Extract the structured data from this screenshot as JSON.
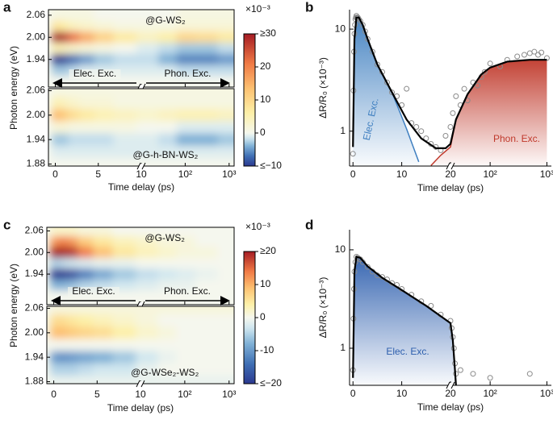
{
  "chart_data": [
    {
      "panel": "a",
      "type": "heatmap",
      "xlabel": "Time delay (ps)",
      "ylabel": "Photon energy (eV)",
      "xlim": [
        -0.8,
        1300
      ],
      "xbreak": 10,
      "xticks": [
        0,
        5,
        10,
        {
          "value": 100,
          "label": "10²"
        },
        {
          "value": 1000,
          "label": "10³"
        }
      ],
      "colorbar": {
        "unit": "×10⁻³",
        "clim": [
          -10,
          30
        ],
        "ticks": [
          {
            "value": -10,
            "label": "≤−10"
          },
          0,
          10,
          20,
          {
            "value": 30,
            "label": "≥30"
          }
        ]
      },
      "annotations": [
        "Elec. Exc.",
        "Phon. Exc."
      ],
      "x": [
        0.3,
        1,
        2,
        3.5,
        5.5,
        8,
        15,
        40,
        100,
        300,
        1000
      ],
      "y": [
        2.06,
        2.03,
        2.0,
        1.97,
        1.94,
        1.91,
        1.88
      ],
      "subplots": [
        {
          "label": "@G-WS₂",
          "ylim": [
            1.865,
            2.075
          ],
          "yticks": [
            2.06,
            {
              "value": 2.0,
              "label": "2.00"
            },
            1.94
          ],
          "z": [
            [
              1,
              1,
              1,
              1,
              0,
              0,
              0,
              0,
              1,
              1,
              1
            ],
            [
              8,
              6,
              4,
              3,
              2,
              1,
              1,
              1,
              2,
              2,
              2
            ],
            [
              30,
              28,
              22,
              16,
              11,
              7,
              4,
              6,
              10,
              9,
              7
            ],
            [
              5,
              4,
              3,
              2,
              1,
              0,
              -1,
              -2,
              -3,
              -3,
              -2
            ],
            [
              -10,
              -9,
              -7,
              -5,
              -3,
              -2,
              -2,
              -4,
              -6,
              -6,
              -5
            ],
            [
              -3,
              -3,
              -2,
              -1,
              -1,
              -1,
              -1,
              -1,
              -2,
              -2,
              -2
            ],
            [
              0,
              0,
              0,
              0,
              0,
              0,
              0,
              0,
              0,
              0,
              0
            ]
          ]
        },
        {
          "label": "@G-h-BN-WS₂",
          "ylim": [
            1.875,
            2.065
          ],
          "yticks": [
            2.06,
            {
              "value": 2.0,
              "label": "2.00"
            },
            1.94,
            1.88
          ],
          "z": [
            [
              1,
              1,
              1,
              1,
              1,
              1,
              1,
              1,
              1,
              1,
              1
            ],
            [
              5,
              4,
              3,
              2,
              2,
              1,
              1,
              1,
              1,
              1,
              1
            ],
            [
              14,
              12,
              9,
              7,
              5,
              4,
              3,
              4,
              5,
              5,
              4
            ],
            [
              2,
              2,
              1,
              1,
              1,
              1,
              0,
              0,
              -1,
              -1,
              -1
            ],
            [
              -3,
              -3,
              -2,
              -2,
              -2,
              -1,
              -1,
              -2,
              -4,
              -4,
              -3
            ],
            [
              -1,
              -1,
              -1,
              -1,
              -1,
              -1,
              -1,
              -1,
              -1,
              -1,
              -1
            ],
            [
              0,
              0,
              0,
              0,
              0,
              0,
              0,
              0,
              0,
              0,
              0
            ]
          ]
        }
      ]
    },
    {
      "panel": "b",
      "type": "logline",
      "xlabel": "Time delay (ps)",
      "ylabel": "ΔR/R₀ (×10⁻³)",
      "xlim": [
        -0.7,
        1200
      ],
      "xbreak": 20,
      "xticks": [
        0,
        10,
        20,
        {
          "value": 100,
          "label": "10²"
        },
        {
          "value": 1000,
          "label": "10³"
        }
      ],
      "ylim": [
        0.455,
        15.5
      ],
      "yticks": [
        1,
        10
      ],
      "log_y": true,
      "points": {
        "color": "#8a8a8a",
        "x": [
          0,
          0.1,
          0.2,
          0.3,
          0.4,
          0.5,
          0.6,
          0.7,
          0.8,
          0.9,
          1.0,
          1.2,
          1.5,
          2,
          2.5,
          3,
          4,
          5,
          6,
          7,
          8,
          9,
          10,
          11,
          12,
          13,
          14,
          15,
          16,
          17,
          18,
          19,
          20,
          22,
          25,
          30,
          35,
          40,
          50,
          60,
          70,
          80,
          100,
          150,
          200,
          300,
          400,
          500,
          600,
          700,
          800,
          1000
        ],
        "values": [
          0.6,
          2.5,
          6,
          9,
          11,
          12.5,
          13,
          13.5,
          13,
          12.8,
          13,
          12.5,
          12,
          11,
          9.5,
          8,
          6,
          4.5,
          3.8,
          3.0,
          2.4,
          2.2,
          1.8,
          2.6,
          1.2,
          1.1,
          1.0,
          0.85,
          0.75,
          0.7,
          0.65,
          0.9,
          1.1,
          1.5,
          2.2,
          1.8,
          2.6,
          2.0,
          3.0,
          2.8,
          3.4,
          3.8,
          4.6,
          4.3,
          5.0,
          5.4,
          5.6,
          5.8,
          6.0,
          5.6,
          5.9,
          5.2
        ]
      },
      "series": [
        {
          "name": "Elec. Exc.",
          "color": "#3f7fc0",
          "fill": true,
          "x": [
            0,
            0.3,
            0.7,
            1.2,
            2,
            3,
            5,
            8,
            11,
            13.5
          ],
          "values": [
            0.7,
            8,
            13,
            13,
            11,
            8,
            4.5,
            2.4,
            1.05,
            0.5
          ]
        },
        {
          "name": "Phon. Exc.",
          "color": "#c0392b",
          "fill": true,
          "x": [
            16,
            18,
            20,
            25,
            40,
            70,
            100,
            200,
            500,
            1000
          ],
          "values": [
            0.46,
            0.58,
            0.7,
            1.3,
            2.3,
            3.6,
            4.2,
            4.8,
            5.0,
            5.0
          ]
        },
        {
          "color": "#000000",
          "x": [
            0,
            0.3,
            0.7,
            1.2,
            2,
            3,
            5,
            8,
            11,
            14,
            17,
            19,
            20,
            25,
            40,
            70,
            100,
            200,
            500,
            1000
          ],
          "values": [
            0.7,
            8,
            13,
            13,
            11,
            8,
            4.5,
            2.4,
            1.3,
            0.85,
            0.68,
            0.68,
            0.75,
            1.3,
            2.3,
            3.6,
            4.2,
            4.8,
            5.0,
            5.0
          ]
        }
      ]
    },
    {
      "panel": "c",
      "type": "heatmap",
      "xlabel": "Time delay (ps)",
      "ylabel": "Photon energy (eV)",
      "xlim": [
        -0.8,
        1300
      ],
      "xbreak": 10,
      "xticks": [
        0,
        5,
        10,
        {
          "value": 100,
          "label": "10²"
        },
        {
          "value": 1000,
          "label": "10³"
        }
      ],
      "colorbar": {
        "unit": "×10⁻³",
        "clim": [
          -20,
          20
        ],
        "ticks": [
          {
            "value": -20,
            "label": "≤−20"
          },
          -10,
          0,
          10,
          {
            "value": 20,
            "label": "≥20"
          }
        ]
      },
      "annotations": [
        "Elec. Exc.",
        "Phon. Exc."
      ],
      "x": [
        0.3,
        1,
        2,
        3.5,
        5.5,
        8,
        15,
        40,
        100,
        300,
        1000
      ],
      "y": [
        2.06,
        2.03,
        2.0,
        1.97,
        1.94,
        1.91,
        1.88
      ],
      "subplots": [
        {
          "label": "@G-WS₂",
          "ylim": [
            1.855,
            2.07
          ],
          "yticks": [
            2.06,
            {
              "value": 2.0,
              "label": "2.00"
            },
            1.94
          ],
          "z": [
            [
              2,
              2,
              2,
              1,
              1,
              0,
              0,
              0,
              0,
              0,
              0
            ],
            [
              12,
              14,
              12,
              8,
              5,
              3,
              2,
              1,
              1,
              0,
              0
            ],
            [
              20,
              20,
              19,
              14,
              9,
              5,
              3,
              2,
              1,
              1,
              0
            ],
            [
              -5,
              -4,
              -3,
              -2,
              -1,
              -1,
              0,
              0,
              0,
              0,
              0
            ],
            [
              -20,
              -20,
              -18,
              -13,
              -9,
              -6,
              -4,
              -3,
              -2,
              -1,
              0
            ],
            [
              -8,
              -8,
              -7,
              -5,
              -4,
              -3,
              -2,
              -1,
              -1,
              0,
              0
            ],
            [
              0,
              0,
              0,
              0,
              0,
              0,
              0,
              0,
              0,
              0,
              0
            ]
          ]
        },
        {
          "label": "@G-WSe₂-WS₂",
          "ylim": [
            1.875,
            2.065
          ],
          "yticks": [
            2.06,
            {
              "value": 2.0,
              "label": "2.00"
            },
            1.94,
            1.88
          ],
          "z": [
            [
              1,
              1,
              1,
              1,
              1,
              1,
              1,
              1,
              1,
              1,
              1
            ],
            [
              6,
              6,
              5,
              4,
              3,
              2,
              1,
              0,
              0,
              0,
              0
            ],
            [
              9,
              9,
              8,
              7,
              6,
              4,
              2,
              1,
              0,
              0,
              0
            ],
            [
              0,
              0,
              0,
              0,
              0,
              0,
              0,
              0,
              0,
              0,
              0
            ],
            [
              -10,
              -11,
              -10,
              -9,
              -8,
              -6,
              -3,
              -1,
              0,
              0,
              0
            ],
            [
              -5,
              -5,
              -5,
              -4,
              -3,
              -3,
              -1,
              0,
              0,
              0,
              0
            ],
            [
              -1,
              -1,
              -1,
              -1,
              -1,
              -1,
              -1,
              -1,
              -1,
              -1,
              -1
            ]
          ]
        }
      ]
    },
    {
      "panel": "d",
      "type": "logline",
      "xlabel": "Time delay (ps)",
      "ylabel": "ΔR/R₀ (×10⁻³)",
      "xlim": [
        -0.7,
        1200
      ],
      "xbreak": 20,
      "xticks": [
        0,
        10,
        20,
        {
          "value": 100,
          "label": "10²"
        },
        {
          "value": 1000,
          "label": "10³"
        }
      ],
      "ylim": [
        0.42,
        16
      ],
      "yticks": [
        1,
        10
      ],
      "log_y": true,
      "points": {
        "color": "#8a8a8a",
        "x": [
          0,
          0.1,
          0.2,
          0.3,
          0.5,
          0.7,
          1,
          1.5,
          2,
          3,
          4,
          5,
          6,
          7,
          8,
          9,
          10,
          12,
          14,
          16,
          18,
          20,
          21,
          22,
          23,
          24,
          25,
          30,
          50,
          100,
          500
        ],
        "values": [
          0.6,
          2,
          4,
          6,
          7.5,
          8.5,
          8.3,
          8.0,
          7.5,
          6.7,
          6.0,
          5.5,
          5.3,
          5.0,
          4.6,
          4.4,
          4.0,
          3.5,
          3.0,
          2.7,
          2.2,
          1.9,
          1.6,
          1.3,
          1.0,
          0.7,
          0.55,
          0.6,
          0.55,
          0.5,
          0.55
        ]
      },
      "series": [
        {
          "name": "Elec. Exc.",
          "color": "#2e5fae",
          "line_color": "#000000",
          "fill": true,
          "x": [
            0,
            0.3,
            0.7,
            1.5,
            3,
            6,
            10,
            15,
            20,
            22,
            24,
            25
          ],
          "values": [
            0.5,
            6,
            8.5,
            8.3,
            6.8,
            5.2,
            3.9,
            2.7,
            1.8,
            1.2,
            0.6,
            0.42
          ]
        }
      ]
    }
  ]
}
